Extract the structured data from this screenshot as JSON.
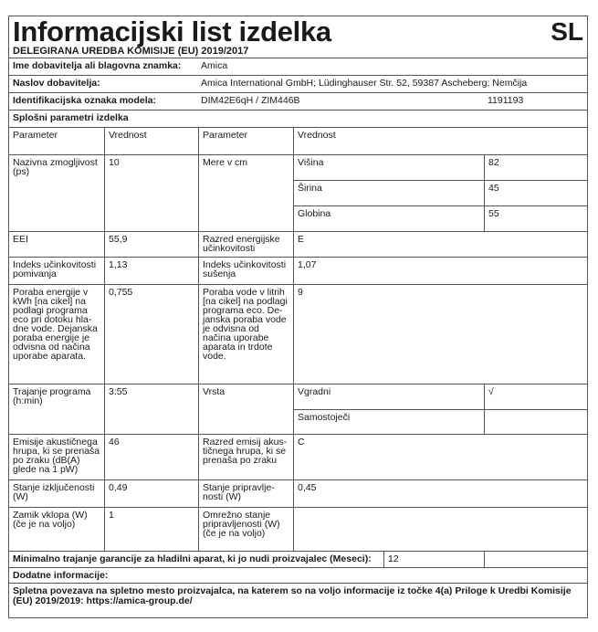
{
  "header": {
    "title": "Informacijski list izdelka",
    "lang": "SL",
    "regulation": "DELEGIRANA UREDBA KOMISIJE (EU) 2019/2017"
  },
  "supplier": {
    "label": "Ime dobavitelja ali blagovna znamka:",
    "value": "Amica"
  },
  "address": {
    "label": "Naslov dobavitelja:",
    "value": "Amica International GmbH; Lüdinghauser Str. 52, 59387 Ascheberg; Nemčija"
  },
  "model": {
    "label": "Identifikacijska oznaka modela:",
    "value": "DIM42E6qH / ZIM446B",
    "code": "1191193"
  },
  "general": {
    "title": "Splošni parametri izdelka",
    "col1": "Parameter",
    "col2": "Vrednost",
    "col3": "Parameter",
    "col4": "Vrednost"
  },
  "params": {
    "capacity": {
      "label": "Nazivna zmogljivost (ps)",
      "value": "10"
    },
    "dims": {
      "label": "Mere v cm",
      "height_label": "Višina",
      "height": "82",
      "width_label": "Širina",
      "width": "45",
      "depth_label": "Globina",
      "depth": "55"
    },
    "eei": {
      "label": "EEI",
      "value": "55,9"
    },
    "energy_class": {
      "label": "Razred energijske učinkovitosti",
      "value": "E"
    },
    "cleaning": {
      "label": "Indeks učinkovitosti pomivanja",
      "value": "1,13"
    },
    "drying": {
      "label": "Indeks učinkovitosti sušenja",
      "value": "1,07"
    },
    "energy": {
      "label": "Poraba energije v kWh [na cikel] na podlagi programa eco pri dotoku hla-dne vode. Dejanska poraba energije je odvisna od načina uporabe aparata.",
      "value": "0,755"
    },
    "water": {
      "label": "Poraba vode v litrih [na cikel] na podlagi programa eco. De-janska poraba vode je odvisna od načina uporabe aparata in trdote vode.",
      "value": "9"
    },
    "duration": {
      "label": "Trajanje programa (h:min)",
      "value": "3:55"
    },
    "type": {
      "label": "Vrsta",
      "builtin": "Vgradni",
      "builtin_value": "√",
      "freestanding": "Samostoječi",
      "freestanding_value": ""
    },
    "noise": {
      "label": "Emisije akustičnega hrupa, ki se prenaša po zraku (dB(A) glede na 1 pW)",
      "value": "46"
    },
    "noise_class": {
      "label": "Razred emisij akus-tičnega hrupa, ki se prenaša po zraku",
      "value": "C"
    },
    "off_mode": {
      "label": "Stanje izključenosti (W)",
      "value": "0,49"
    },
    "standby": {
      "label": "Stanje pripravlje-nosti (W)",
      "value": "0,45"
    },
    "delay": {
      "label": "Zamik vklopa (W) (če je na voljo)",
      "value": "1"
    },
    "network": {
      "label": "Omrežno stanje pripravljenosti (W) (če je na voljo)",
      "value": ""
    }
  },
  "warranty": {
    "label": "Minimalno trajanje garancije za hladilni aparat, ki jo nudi proizvajalec (Meseci):",
    "value": "12"
  },
  "additional": {
    "label": "Dodatne informacije:",
    "link_text": "Spletna povezava na spletno mesto proizvajalca, na katerem so na voljo informacije iz točke 4(a) Priloge k Uredbi Komisije (EU) 2019/2019: https://amica-group.de/"
  }
}
